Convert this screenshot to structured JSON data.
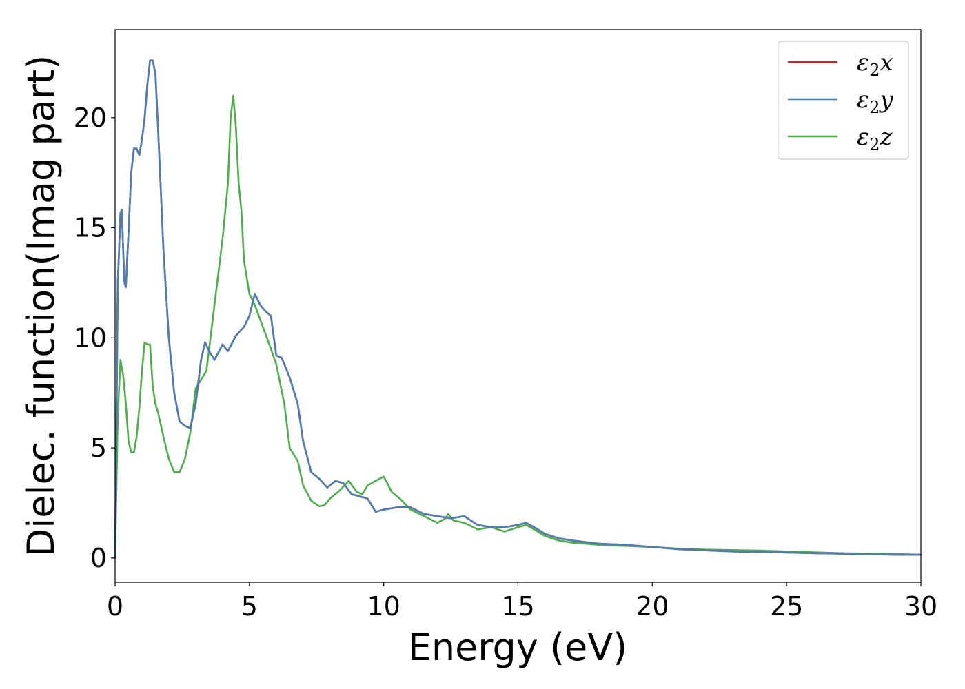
{
  "chart_data": {
    "type": "line",
    "xlabel": "Energy (eV)",
    "ylabel": "Dielec. function(Imag part)",
    "xlim": [
      0,
      30
    ],
    "ylim": [
      -1.1,
      24
    ],
    "xticks": [
      0,
      5,
      10,
      15,
      20,
      25,
      30
    ],
    "yticks": [
      0,
      5,
      10,
      15,
      20
    ],
    "xtick_labels": [
      "0",
      "5",
      "10",
      "15",
      "20",
      "25",
      "30"
    ],
    "ytick_labels": [
      "0",
      "5",
      "10",
      "15",
      "20"
    ],
    "grid": false,
    "legend_position": "top-right",
    "series": [
      {
        "name": "ε₂x",
        "legend": {
          "base": "ε",
          "sub": "2",
          "comp": "x"
        },
        "color": "#e41a1c",
        "x": [
          0,
          0.1,
          0.2,
          0.25,
          0.3,
          0.35,
          0.4,
          0.5,
          0.6,
          0.7,
          0.8,
          0.9,
          1.0,
          1.1,
          1.2,
          1.3,
          1.4,
          1.5,
          1.6,
          1.8,
          2.0,
          2.2,
          2.4,
          2.6,
          2.8,
          3.0,
          3.2,
          3.35,
          3.5,
          3.7,
          4.0,
          4.2,
          4.5,
          4.8,
          5.0,
          5.2,
          5.4,
          5.6,
          5.8,
          6.0,
          6.2,
          6.5,
          6.8,
          7.0,
          7.3,
          7.6,
          7.9,
          8.2,
          8.5,
          8.8,
          9.1,
          9.4,
          9.7,
          10.0,
          10.5,
          11.0,
          11.5,
          12.0,
          12.5,
          13.0,
          13.5,
          14.0,
          14.5,
          15.0,
          15.3,
          15.6,
          16.0,
          16.5,
          17.0,
          18.0,
          19.0,
          20.0,
          21.0,
          22.0,
          23.0,
          24.0,
          25.0,
          26.0,
          27.0,
          28.0,
          29.0,
          30.0
        ],
        "y": [
          0,
          12.5,
          15.7,
          15.8,
          14.0,
          12.5,
          12.3,
          14.8,
          17.5,
          18.6,
          18.6,
          18.3,
          19.0,
          20.0,
          21.5,
          22.6,
          22.6,
          22.0,
          19.5,
          14.0,
          10.0,
          7.5,
          6.2,
          6.0,
          5.9,
          7.0,
          9.0,
          9.8,
          9.4,
          9.0,
          9.7,
          9.4,
          10.1,
          10.5,
          11.0,
          12.0,
          11.5,
          11.2,
          11.0,
          9.2,
          9.1,
          8.2,
          7.0,
          5.3,
          3.9,
          3.6,
          3.2,
          3.5,
          3.4,
          2.9,
          2.8,
          2.7,
          2.1,
          2.2,
          2.3,
          2.3,
          2.0,
          1.9,
          1.8,
          1.9,
          1.5,
          1.4,
          1.4,
          1.5,
          1.6,
          1.4,
          1.1,
          0.9,
          0.8,
          0.65,
          0.6,
          0.5,
          0.4,
          0.35,
          0.3,
          0.28,
          0.25,
          0.22,
          0.2,
          0.18,
          0.15,
          0.15
        ]
      },
      {
        "name": "ε₂y",
        "legend": {
          "base": "ε",
          "sub": "2",
          "comp": "y"
        },
        "color": "#4a7fb5",
        "x": [
          0,
          0.1,
          0.2,
          0.25,
          0.3,
          0.35,
          0.4,
          0.5,
          0.6,
          0.7,
          0.8,
          0.9,
          1.0,
          1.1,
          1.2,
          1.3,
          1.4,
          1.5,
          1.6,
          1.8,
          2.0,
          2.2,
          2.4,
          2.6,
          2.8,
          3.0,
          3.2,
          3.35,
          3.5,
          3.7,
          4.0,
          4.2,
          4.5,
          4.8,
          5.0,
          5.2,
          5.4,
          5.6,
          5.8,
          6.0,
          6.2,
          6.5,
          6.8,
          7.0,
          7.3,
          7.6,
          7.9,
          8.2,
          8.5,
          8.8,
          9.1,
          9.4,
          9.7,
          10.0,
          10.5,
          11.0,
          11.5,
          12.0,
          12.5,
          13.0,
          13.5,
          14.0,
          14.5,
          15.0,
          15.3,
          15.6,
          16.0,
          16.5,
          17.0,
          18.0,
          19.0,
          20.0,
          21.0,
          22.0,
          23.0,
          24.0,
          25.0,
          26.0,
          27.0,
          28.0,
          29.0,
          30.0
        ],
        "y": [
          0,
          12.5,
          15.7,
          15.8,
          14.0,
          12.5,
          12.3,
          14.8,
          17.5,
          18.6,
          18.6,
          18.3,
          19.0,
          20.0,
          21.5,
          22.6,
          22.6,
          22.0,
          19.5,
          14.0,
          10.0,
          7.5,
          6.2,
          6.0,
          5.9,
          7.0,
          9.0,
          9.8,
          9.4,
          9.0,
          9.7,
          9.4,
          10.1,
          10.5,
          11.0,
          12.0,
          11.5,
          11.2,
          11.0,
          9.2,
          9.1,
          8.2,
          7.0,
          5.3,
          3.9,
          3.6,
          3.2,
          3.5,
          3.4,
          2.9,
          2.8,
          2.7,
          2.1,
          2.2,
          2.3,
          2.3,
          2.0,
          1.9,
          1.8,
          1.9,
          1.5,
          1.4,
          1.4,
          1.5,
          1.6,
          1.4,
          1.1,
          0.9,
          0.8,
          0.65,
          0.6,
          0.5,
          0.4,
          0.35,
          0.3,
          0.28,
          0.25,
          0.22,
          0.2,
          0.18,
          0.15,
          0.15
        ]
      },
      {
        "name": "ε₂z",
        "legend": {
          "base": "ε",
          "sub": "2",
          "comp": "z"
        },
        "color": "#4daf4a",
        "x": [
          0,
          0.1,
          0.2,
          0.3,
          0.4,
          0.5,
          0.6,
          0.7,
          0.8,
          0.9,
          1.0,
          1.1,
          1.2,
          1.3,
          1.4,
          1.5,
          1.6,
          1.8,
          2.0,
          2.2,
          2.4,
          2.6,
          2.8,
          3.0,
          3.2,
          3.4,
          3.6,
          3.8,
          4.0,
          4.2,
          4.3,
          4.4,
          4.5,
          4.6,
          4.7,
          4.8,
          5.0,
          5.2,
          5.5,
          5.8,
          6.0,
          6.3,
          6.5,
          6.8,
          7.0,
          7.3,
          7.6,
          7.8,
          8.0,
          8.3,
          8.7,
          9.0,
          9.2,
          9.4,
          9.7,
          10.0,
          10.3,
          10.6,
          11.0,
          11.5,
          12.0,
          12.3,
          12.4,
          12.6,
          13.0,
          13.5,
          14.0,
          14.5,
          15.0,
          15.3,
          15.6,
          16.0,
          16.5,
          17.0,
          18.0,
          19.0,
          20.0,
          21.0,
          22.0,
          23.0,
          24.0,
          25.0,
          26.0,
          27.0,
          28.0,
          29.0,
          30.0
        ],
        "y": [
          0,
          6.5,
          9.0,
          8.3,
          7.0,
          5.3,
          4.8,
          4.8,
          5.5,
          6.8,
          8.5,
          9.8,
          9.7,
          9.7,
          7.8,
          7.0,
          6.6,
          5.5,
          4.5,
          3.9,
          3.9,
          4.5,
          5.7,
          7.7,
          8.1,
          8.5,
          10.5,
          12.5,
          14.5,
          17.0,
          20.0,
          21.0,
          19.5,
          17.0,
          15.8,
          13.5,
          12.0,
          11.5,
          10.5,
          9.5,
          8.8,
          7.0,
          5.0,
          4.4,
          3.3,
          2.6,
          2.35,
          2.4,
          2.7,
          3.0,
          3.5,
          3.0,
          2.9,
          3.3,
          3.5,
          3.7,
          3.0,
          2.7,
          2.2,
          1.9,
          1.6,
          1.8,
          2.0,
          1.7,
          1.6,
          1.3,
          1.4,
          1.2,
          1.4,
          1.5,
          1.3,
          1.0,
          0.8,
          0.7,
          0.6,
          0.55,
          0.5,
          0.42,
          0.38,
          0.36,
          0.34,
          0.3,
          0.26,
          0.22,
          0.2,
          0.18,
          0.15
        ]
      }
    ]
  }
}
